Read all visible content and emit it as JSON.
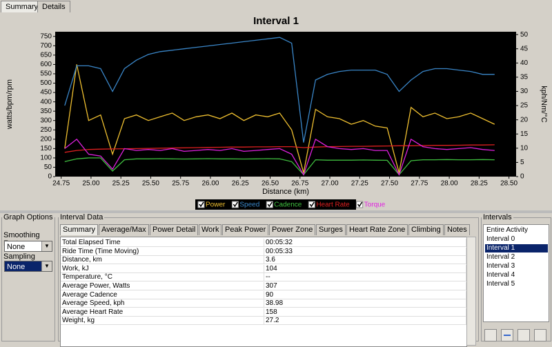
{
  "tabs": [
    "Summary",
    "Details"
  ],
  "chart_data": {
    "type": "line",
    "title": "Interval 1",
    "xlabel": "Distance (km)",
    "ylabel": "watts/bpm/rpm",
    "y2label": "kph/Nm/°C",
    "x": [
      24.78,
      24.88,
      24.98,
      25.08,
      25.18,
      25.28,
      25.38,
      25.48,
      25.58,
      25.68,
      25.78,
      25.88,
      25.98,
      26.08,
      26.18,
      26.28,
      26.38,
      26.48,
      26.58,
      26.68,
      26.78,
      26.88,
      26.98,
      27.08,
      27.18,
      27.28,
      27.38,
      27.48,
      27.58,
      27.68,
      27.78,
      27.88,
      27.98,
      28.08,
      28.18,
      28.28,
      28.38
    ],
    "series": [
      {
        "name": "Power",
        "color": "#f0c030",
        "values": [
          150,
          600,
          300,
          330,
          120,
          310,
          330,
          300,
          320,
          340,
          300,
          320,
          330,
          310,
          340,
          300,
          330,
          320,
          340,
          250,
          20,
          360,
          320,
          310,
          280,
          300,
          270,
          260,
          20,
          370,
          320,
          340,
          310,
          320,
          340,
          310,
          280
        ]
      },
      {
        "name": "Speed",
        "color": "#3a86c8",
        "axis": "y2",
        "values": [
          25,
          39,
          39,
          38,
          30,
          38,
          41,
          43,
          44,
          44.5,
          45,
          45.5,
          46,
          46.5,
          47,
          47.5,
          48,
          48.5,
          49,
          47,
          12,
          34,
          36,
          37,
          37.5,
          37.5,
          37.5,
          36,
          30,
          34,
          37,
          38,
          38,
          37.5,
          37,
          36,
          36
        ]
      },
      {
        "name": "Cadence",
        "color": "#40c040",
        "values": [
          80,
          95,
          100,
          100,
          30,
          90,
          95,
          95,
          96,
          95,
          94,
          95,
          96,
          95,
          95,
          94,
          95,
          96,
          95,
          80,
          10,
          90,
          88,
          88,
          88,
          89,
          88,
          87,
          10,
          85,
          90,
          90,
          91,
          90,
          90,
          91,
          90
        ]
      },
      {
        "name": "Heart Rate",
        "color": "#e02020",
        "values": [
          130,
          140,
          145,
          147,
          148,
          149,
          150,
          151,
          152,
          153,
          154,
          155,
          156,
          157,
          158,
          158,
          159,
          159,
          160,
          160,
          155,
          158,
          160,
          161,
          162,
          162,
          163,
          164,
          165,
          165,
          166,
          167,
          167,
          168,
          169,
          169,
          170
        ]
      },
      {
        "name": "Torque",
        "color": "#e020e0",
        "values": [
          150,
          200,
          120,
          110,
          40,
          150,
          140,
          145,
          140,
          150,
          135,
          140,
          145,
          140,
          150,
          135,
          140,
          145,
          150,
          120,
          10,
          200,
          160,
          150,
          145,
          150,
          140,
          140,
          10,
          200,
          160,
          150,
          145,
          150,
          155,
          145,
          140
        ]
      }
    ],
    "xlim": [
      24.7,
      28.56
    ],
    "ylim": [
      0,
      775
    ],
    "y2lim": [
      0,
      51
    ],
    "xticks": [
      24.75,
      {
        "value": 25,
        "label": "25.00"
      },
      25.25,
      {
        "value": 25.5,
        "label": "25.50"
      },
      25.75,
      {
        "value": 26,
        "label": "26.00"
      },
      26.25,
      {
        "value": 26.5,
        "label": "26.50"
      },
      26.75,
      {
        "value": 27,
        "label": "27.00"
      },
      27.25,
      {
        "value": 27.5,
        "label": "27.50"
      },
      27.75,
      {
        "value": 28,
        "label": "28.00"
      },
      28.25,
      {
        "value": 28.5,
        "label": "28.50"
      }
    ],
    "yticks": [
      0,
      50,
      100,
      150,
      200,
      250,
      300,
      350,
      400,
      450,
      500,
      550,
      600,
      650,
      700,
      750
    ],
    "y2ticks": [
      0,
      5,
      10,
      15,
      20,
      25,
      30,
      35,
      40,
      45,
      50
    ],
    "grid": false,
    "legend": "bottom"
  },
  "graph_options": {
    "title": "Graph Options",
    "smoothing_label": "Smoothing Factor:",
    "smoothing_value": "None",
    "sampling_label": "Sampling Factor:",
    "sampling_value": "None"
  },
  "interval_data": {
    "title": "Interval Data",
    "tabs": [
      "Summary",
      "Average/Max",
      "Power Detail",
      "Work",
      "Peak Power",
      "Power Zone",
      "Surges",
      "Heart Rate Zone",
      "Climbing",
      "Notes"
    ],
    "rows": [
      [
        "Total Elapsed Time",
        "00:05:32"
      ],
      [
        "Ride Time (Time Moving)",
        "00:05:33"
      ],
      [
        "Distance, km",
        "3.6"
      ],
      [
        "Work, kJ",
        "104"
      ],
      [
        "Temperature, °C",
        "--"
      ],
      [
        "Average Power, Watts",
        "307"
      ],
      [
        "Average Cadence",
        "90"
      ],
      [
        "Average Speed, kph",
        "38.98"
      ],
      [
        "Average Heart Rate",
        "158"
      ],
      [
        "Weight, kg",
        "27.2"
      ]
    ]
  },
  "intervals": {
    "title": "Intervals",
    "items": [
      "Entire Activity",
      "Interval 0",
      "Interval 1",
      "Interval 2",
      "Interval 3",
      "Interval 4",
      "Interval 5"
    ]
  }
}
